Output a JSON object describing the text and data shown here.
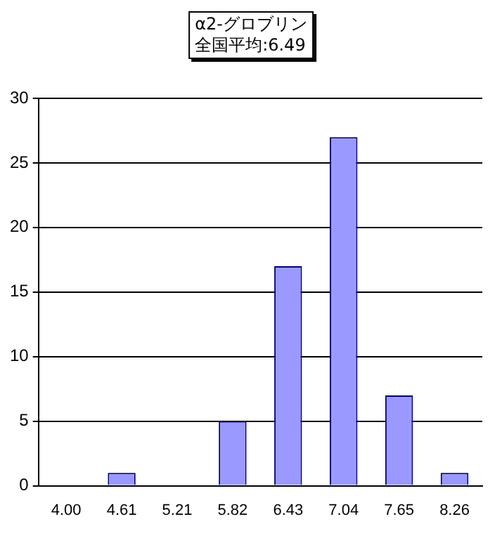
{
  "chart_data": {
    "type": "bar",
    "title": "α2-グロブリン",
    "subtitle": "全国平均:6.49",
    "categories": [
      "4.00",
      "4.61",
      "5.21",
      "5.82",
      "6.43",
      "7.04",
      "7.65",
      "8.26"
    ],
    "values": [
      0,
      1,
      0,
      5,
      17,
      27,
      7,
      1
    ],
    "color": "#9999ff",
    "ylim": [
      0,
      30
    ],
    "yticks": [
      0,
      5,
      10,
      15,
      20,
      25,
      30
    ],
    "grid": "y",
    "legend": false
  }
}
